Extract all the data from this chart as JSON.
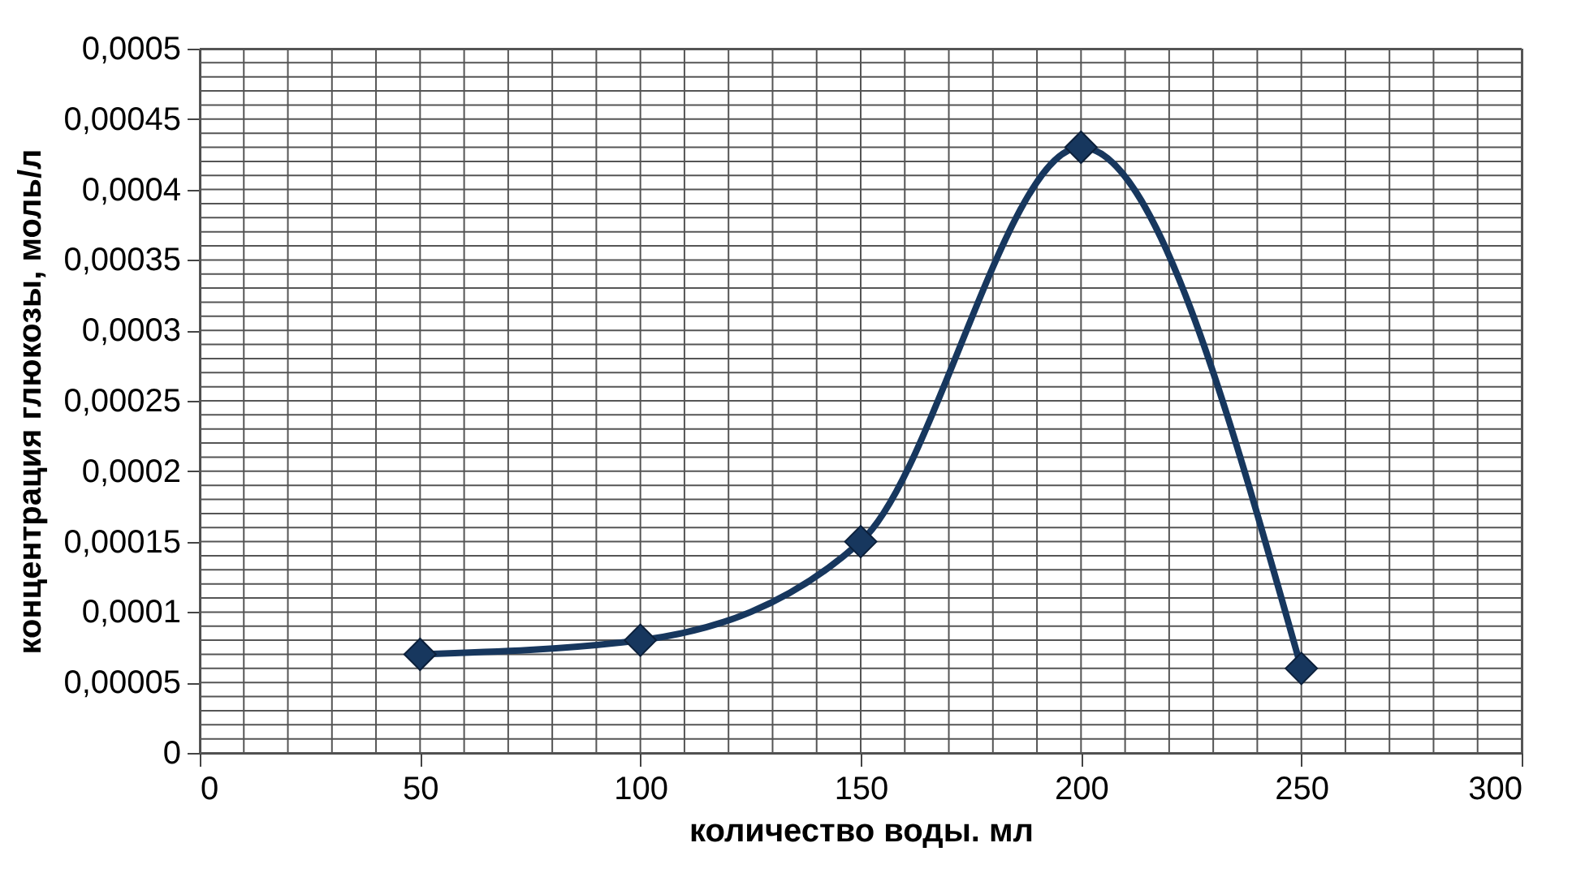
{
  "chart_data": {
    "type": "line",
    "xlabel": "количество воды. мл",
    "ylabel": "концентрация глюкозы, моль/л",
    "x": [
      50,
      100,
      150,
      200,
      250
    ],
    "series": [
      {
        "color": "#17375e",
        "values": [
          7e-05,
          8e-05,
          0.00015,
          0.00043,
          6e-05
        ]
      }
    ],
    "xlim": [
      0,
      300
    ],
    "xticks": [
      0,
      50,
      100,
      150,
      200,
      250,
      300
    ],
    "ylim": [
      0,
      0.0005
    ],
    "yticks": [
      {
        "value": 0,
        "label": "0"
      },
      {
        "value": 5e-05,
        "label": "0,00005"
      },
      {
        "value": 0.0001,
        "label": "0,0001"
      },
      {
        "value": 0.00015,
        "label": "0,00015"
      },
      {
        "value": 0.0002,
        "label": "0,0002"
      },
      {
        "value": 0.00025,
        "label": "0,00025"
      },
      {
        "value": 0.0003,
        "label": "0,0003"
      },
      {
        "value": 0.00035,
        "label": "0,00035"
      },
      {
        "value": 0.0004,
        "label": "0,0004"
      },
      {
        "value": 0.00045,
        "label": "0,00045"
      },
      {
        "value": 0.0005,
        "label": "0,0005"
      }
    ],
    "grid": true,
    "marker": "diamond",
    "line_style": "solid"
  }
}
